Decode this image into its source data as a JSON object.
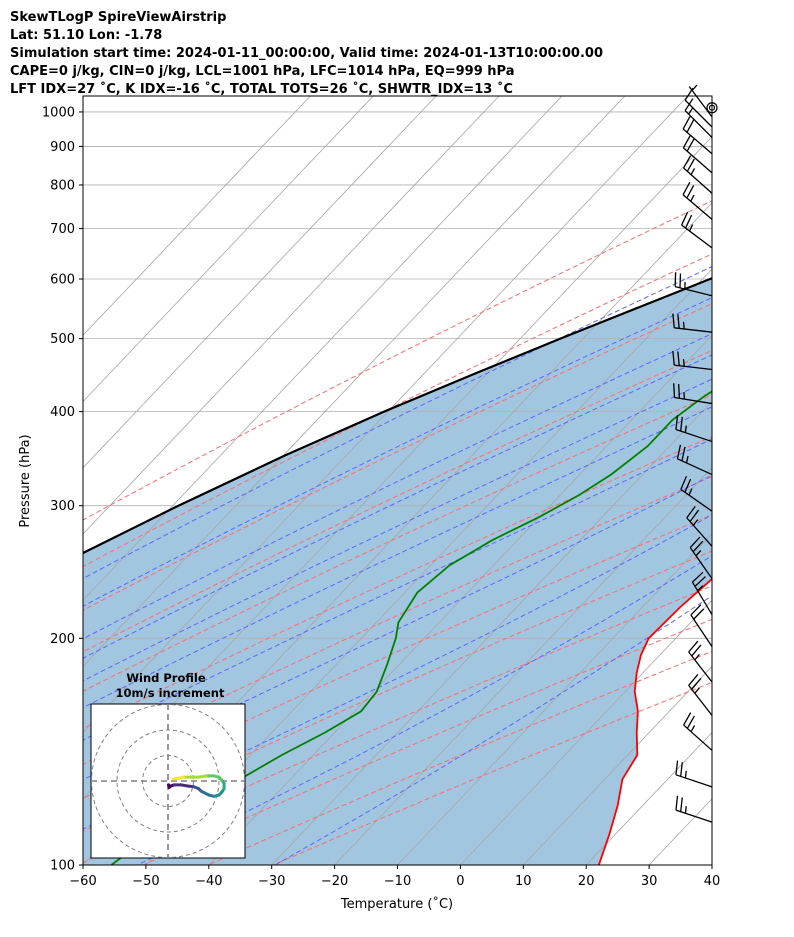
{
  "header": {
    "line1": "SkewTLogP SpireViewAirstrip",
    "line2": "Lat: 51.10   Lon: -1.78",
    "line3": "Simulation start time: 2024-01-11_00:00:00, Valid time: 2024-01-13T10:00:00.00",
    "line4": "CAPE=0 j/kg, CIN=0 j/kg, LCL=1001 hPa, LFC=1014 hPa, EQ=999 hPa",
    "line5": "LFT IDX=27 ˚C, K IDX=-16 ˚C, TOTAL TOTS=26 ˚C, SHWTR_IDX=13 ˚C"
  },
  "chart_data": {
    "type": "line",
    "subtype": "skew-t log-p",
    "xlabel": "Temperature ($^\\circ$C)",
    "ylabel": "Pressure (hPa)",
    "xlim": [
      -60,
      40
    ],
    "ylim": [
      1050,
      100
    ],
    "yscale": "log",
    "x_ticks": [
      -60,
      -50,
      -40,
      -30,
      -20,
      -10,
      0,
      10,
      20,
      30,
      40
    ],
    "x_tick_labels": [
      "−60",
      "−50",
      "−40",
      "−30",
      "−20",
      "−10",
      "0",
      "10",
      "20",
      "30",
      "40"
    ],
    "y_ticks": [
      1000,
      900,
      800,
      700,
      600,
      500,
      400,
      300,
      200,
      100
    ],
    "y_tick_labels": [
      "1000",
      "900",
      "800",
      "700",
      "600",
      "500",
      "400",
      "300",
      "200",
      "100"
    ],
    "grid": true,
    "series": [
      {
        "kind": "temperature",
        "color": "#ff0000",
        "points": [
          [
            1013,
            -2.5
          ],
          [
            1005,
            3.5
          ],
          [
            990,
            6.5
          ],
          [
            960,
            9.0
          ],
          [
            930,
            10.1
          ],
          [
            900,
            10.2
          ],
          [
            850,
            9.5
          ],
          [
            800,
            8.6
          ],
          [
            750,
            7.5
          ],
          [
            700,
            6.7
          ],
          [
            650,
            6.0
          ],
          [
            600,
            4.8
          ],
          [
            550,
            3.5
          ],
          [
            500,
            2.5
          ],
          [
            450,
            1.8
          ],
          [
            400,
            0.8
          ],
          [
            350,
            -0.2
          ],
          [
            300,
            -1.0
          ],
          [
            280,
            -1.8
          ],
          [
            250,
            -2.8
          ],
          [
            220,
            -4.0
          ],
          [
            200,
            -4.3
          ],
          [
            190,
            -3.0
          ],
          [
            180,
            -1.0
          ],
          [
            170,
            1.5
          ],
          [
            160,
            5.0
          ],
          [
            150,
            8.0
          ],
          [
            140,
            11.5
          ],
          [
            130,
            12.8
          ],
          [
            120,
            16.0
          ],
          [
            110,
            19.0
          ],
          [
            100,
            22.0
          ]
        ]
      },
      {
        "kind": "dewpoint",
        "color": "#008000",
        "points": [
          [
            1013,
            -2.5
          ],
          [
            990,
            -7.5
          ],
          [
            950,
            -14.5
          ],
          [
            920,
            -17.5
          ],
          [
            900,
            -17.0
          ],
          [
            880,
            -16.0
          ],
          [
            850,
            -13.0
          ],
          [
            800,
            -13.5
          ],
          [
            750,
            -13.8
          ],
          [
            700,
            -16.5
          ],
          [
            650,
            -20.0
          ],
          [
            620,
            -21.0
          ],
          [
            590,
            -22.0
          ],
          [
            560,
            -21.0
          ],
          [
            530,
            -24.0
          ],
          [
            500,
            -25.8
          ],
          [
            450,
            -29.5
          ],
          [
            420,
            -32.0
          ],
          [
            390,
            -33.5
          ],
          [
            360,
            -33.5
          ],
          [
            330,
            -35.0
          ],
          [
            310,
            -37.0
          ],
          [
            290,
            -40.0
          ],
          [
            270,
            -44.0
          ],
          [
            250,
            -47.0
          ],
          [
            230,
            -48.0
          ],
          [
            210,
            -46.5
          ],
          [
            200,
            -44.5
          ],
          [
            185,
            -42.0
          ],
          [
            170,
            -39.5
          ],
          [
            160,
            -39.0
          ],
          [
            150,
            -41.5
          ],
          [
            140,
            -45.0
          ],
          [
            130,
            -48.0
          ],
          [
            120,
            -51.0
          ],
          [
            110,
            -53.5
          ],
          [
            100,
            -55.5
          ]
        ]
      },
      {
        "kind": "parcel",
        "color": "#000000",
        "points": [
          [
            1013,
            -2.5
          ],
          [
            1000,
            -3.6
          ],
          [
            950,
            -8.2
          ],
          [
            900,
            -13.2
          ],
          [
            850,
            -18.5
          ],
          [
            800,
            -24.0
          ],
          [
            750,
            -29.8
          ],
          [
            700,
            -35.8
          ],
          [
            650,
            -42.1
          ],
          [
            600,
            -48.8
          ],
          [
            550,
            -55.9
          ],
          [
            500,
            -63.6
          ],
          [
            450,
            -71.8
          ],
          [
            400,
            -80.6
          ],
          [
            350,
            -89.7
          ],
          [
            300,
            -99.1
          ],
          [
            250,
            -109.2
          ],
          [
            200,
            -120.5
          ],
          [
            150,
            -133.8
          ],
          [
            100,
            -151.5
          ]
        ]
      }
    ],
    "shaded_region": {
      "between": [
        "parcel",
        "temperature"
      ],
      "color": "#a2c6e0"
    },
    "reference_lines": {
      "dry_adiabats": {
        "color": "#ff6b6b",
        "style": "dashed",
        "theta_K": [
          230,
          250,
          270,
          290,
          310,
          330,
          350,
          370,
          390,
          410,
          430,
          450,
          470
        ]
      },
      "moist_adiabats": {
        "color": "#5d66ff",
        "style": "dashed",
        "start_temp_C_at_1000": [
          -20,
          -10,
          0,
          5,
          10,
          15,
          20,
          25,
          30,
          35,
          40
        ]
      },
      "mixing_ratio": {
        "color": "#9933cc",
        "style": "dashed"
      },
      "isotherms": {
        "color": "#999999",
        "style": "solid"
      }
    },
    "wind_barbs": {
      "units": "knots",
      "levels": [
        {
          "p": 1013,
          "u": 0,
          "v": 0
        },
        {
          "p": 985,
          "u": 3,
          "v": -4
        },
        {
          "p": 955,
          "u": 6,
          "v": -6
        },
        {
          "p": 925,
          "u": 9,
          "v": -9
        },
        {
          "p": 880,
          "u": 14,
          "v": -12
        },
        {
          "p": 830,
          "u": 16,
          "v": -14
        },
        {
          "p": 780,
          "u": 18,
          "v": -16
        },
        {
          "p": 720,
          "u": 20,
          "v": -17
        },
        {
          "p": 660,
          "u": 20,
          "v": -15
        },
        {
          "p": 570,
          "u": 24,
          "v": -6
        },
        {
          "p": 510,
          "u": 26,
          "v": -3
        },
        {
          "p": 455,
          "u": 26,
          "v": -3
        },
        {
          "p": 410,
          "u": 25,
          "v": -4
        },
        {
          "p": 365,
          "u": 24,
          "v": -8
        },
        {
          "p": 330,
          "u": 22,
          "v": -10
        },
        {
          "p": 295,
          "u": 20,
          "v": -14
        },
        {
          "p": 265,
          "u": 16,
          "v": -18
        },
        {
          "p": 240,
          "u": 14,
          "v": -20
        },
        {
          "p": 215,
          "u": 12,
          "v": -20
        },
        {
          "p": 195,
          "u": 12,
          "v": -18
        },
        {
          "p": 175,
          "u": 14,
          "v": -18
        },
        {
          "p": 158,
          "u": 14,
          "v": -18
        },
        {
          "p": 142,
          "u": 18,
          "v": -16
        },
        {
          "p": 127,
          "u": 24,
          "v": -8
        },
        {
          "p": 114,
          "u": 24,
          "v": -8
        }
      ]
    },
    "hodograph": {
      "title_line1": "Wind Profile",
      "title_line2": "10m/s increment",
      "rings_ms": [
        10,
        20,
        30
      ],
      "points_uv_ms": [
        [
          0.2,
          -1.5
        ],
        [
          0.5,
          -2.5
        ],
        [
          1.0,
          -2.0
        ],
        [
          2.5,
          -1.5
        ],
        [
          5,
          -1.5
        ],
        [
          8,
          -2.0
        ],
        [
          10,
          -2.2
        ],
        [
          12,
          -3.0
        ],
        [
          13,
          -4.0
        ],
        [
          14,
          -4.5
        ],
        [
          16,
          -5.5
        ],
        [
          18,
          -6.0
        ],
        [
          20,
          -5.5
        ],
        [
          21,
          -4.5
        ],
        [
          22,
          -3.0
        ],
        [
          22,
          -1.0
        ],
        [
          21,
          0.5
        ],
        [
          20,
          1.5
        ],
        [
          18,
          2.0
        ],
        [
          15,
          2.0
        ],
        [
          12,
          1.5
        ],
        [
          9,
          1.5
        ],
        [
          6,
          1.5
        ],
        [
          4,
          1.0
        ],
        [
          2,
          0.8
        ]
      ],
      "colormap": "viridis"
    }
  }
}
